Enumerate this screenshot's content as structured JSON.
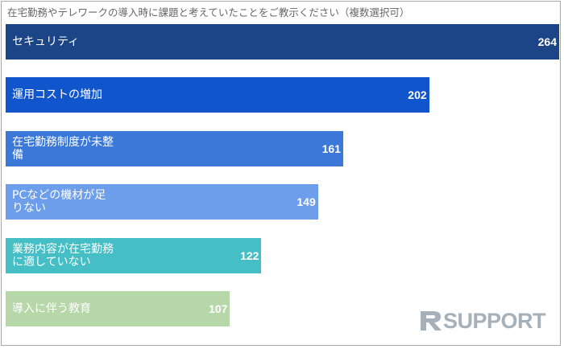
{
  "chart_data": {
    "type": "bar",
    "orientation": "horizontal",
    "title": "在宅勤務やテレワークの導入時に課題と考えていたことをご教示ください（複数選択可）",
    "categories": [
      "セキュリティ",
      "運用コストの増加",
      "在宅勤務制度が未整備",
      "PCなどの機材が足りない",
      "業務内容が在宅勤務に適していない",
      "導入に伴う教育"
    ],
    "category_lines": [
      [
        "セキュリティ"
      ],
      [
        "運用コストの増加"
      ],
      [
        "在宅勤務制度が未整",
        "備"
      ],
      [
        "PCなどの機材が足",
        "りない"
      ],
      [
        "業務内容が在宅勤務",
        "に適していない"
      ],
      [
        "導入に伴う教育"
      ]
    ],
    "values": [
      264,
      202,
      161,
      149,
      122,
      107
    ],
    "colors": [
      "#1c4587",
      "#1155cc",
      "#3c78d8",
      "#6d9eeb",
      "#45bec6",
      "#b6d7a8"
    ],
    "xlim": [
      0,
      264
    ],
    "grid": false,
    "legend": "none",
    "data_labels": true
  },
  "logo": {
    "text": "RSUPPORT"
  }
}
